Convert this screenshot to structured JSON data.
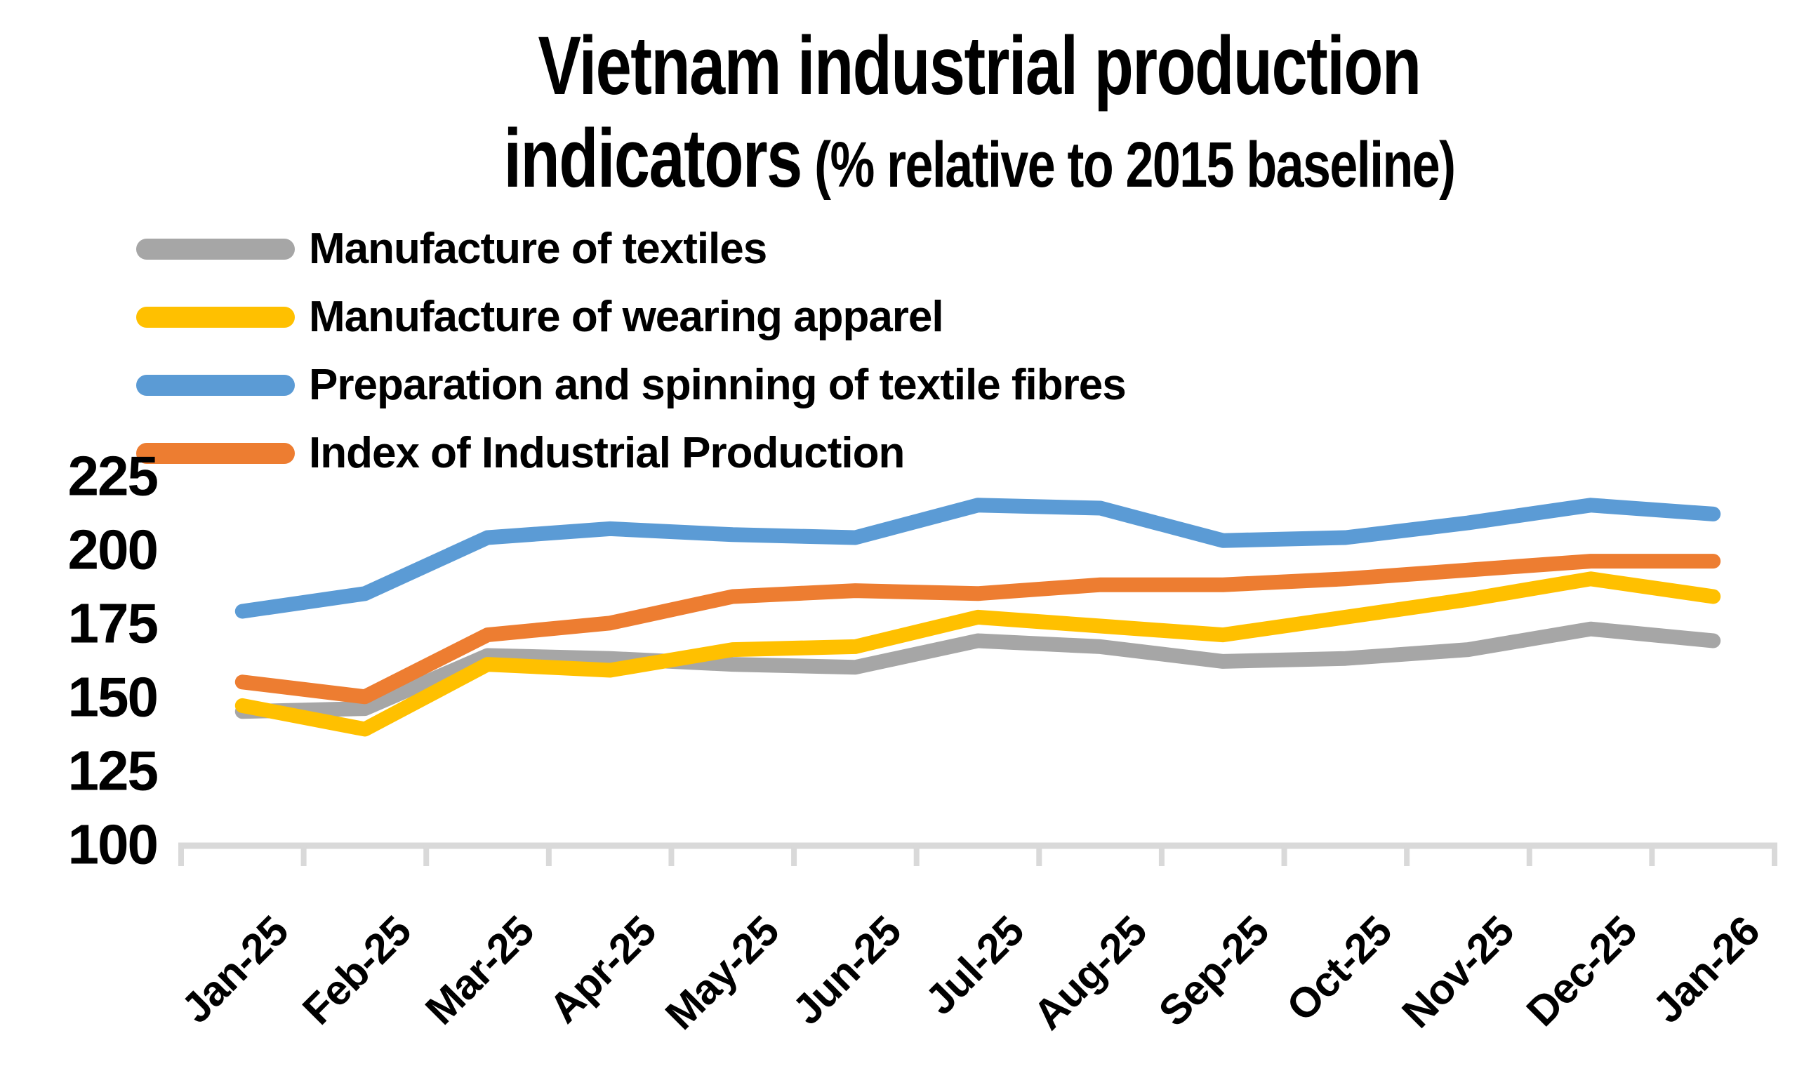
{
  "title": {
    "line1": "Vietnam industrial production",
    "line2_main": "indicators",
    "line2_sub": " (% relative to 2015 baseline)"
  },
  "chart_data": {
    "type": "line",
    "title": "Vietnam industrial production indicators (% relative to 2015 baseline)",
    "categories": [
      "Jan-25",
      "Feb-25",
      "Mar-25",
      "Apr-25",
      "May-25",
      "Jun-25",
      "Jul-25",
      "Aug-25",
      "Sep-25",
      "Oct-25",
      "Nov-25",
      "Dec-25",
      "Jan-26"
    ],
    "series": [
      {
        "name": "Manufacture of textiles",
        "color": "#A6A6A6",
        "values": [
          146,
          147,
          165,
          164,
          162,
          161,
          170,
          168,
          163,
          164,
          167,
          174,
          170
        ]
      },
      {
        "name": "Manufacture of wearing apparel",
        "color": "#FFC000",
        "values": [
          148,
          140,
          162,
          160,
          167,
          168,
          178,
          175,
          172,
          178,
          184,
          191,
          185
        ]
      },
      {
        "name": "Preparation and spinning of textile fibres",
        "color": "#5B9BD5",
        "values": [
          180,
          186,
          205,
          208,
          206,
          205,
          216,
          215,
          204,
          205,
          210,
          216,
          213
        ]
      },
      {
        "name": "Index of Industrial Production",
        "color": "#ED7D31",
        "values": [
          156,
          151,
          172,
          176,
          185,
          187,
          186,
          189,
          189,
          191,
          194,
          197,
          197
        ]
      }
    ],
    "legend_order": [
      "Manufacture of textiles",
      "Manufacture of wearing apparel",
      "Preparation and spinning of textile fibres",
      "Index of Industrial Production"
    ],
    "legend_position": "top-left",
    "xlabel": "",
    "ylabel": "",
    "ylim": [
      100,
      225
    ],
    "yticks": [
      225,
      200,
      175,
      150,
      125,
      100
    ],
    "grid": false,
    "axis_color": "#D9D9D9"
  }
}
